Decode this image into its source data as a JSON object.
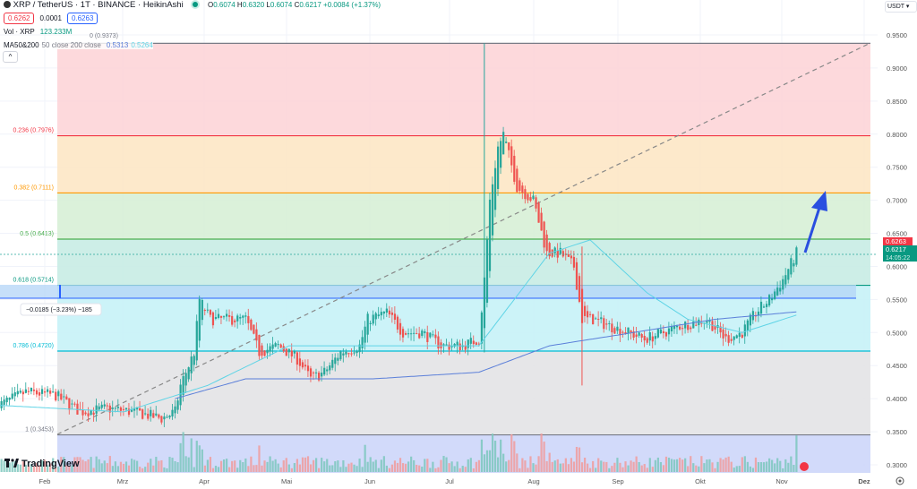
{
  "header": {
    "symbol": "XRP / TetherUS · 1T · BINANCE · HeikinAshi",
    "o_label": "O",
    "o": "0.6074",
    "h_label": "H",
    "h": "0.6320",
    "l_label": "L",
    "l": "0.6074",
    "c_label": "C",
    "c": "0.6217",
    "change": "+0.0084 (+1.37%)",
    "sell": "0.6262",
    "spread": "0.0001",
    "buy": "0.6263",
    "vol_label": "Vol · XRP",
    "vol": "123.233M",
    "ma_label": "MA50&200",
    "ma_params": "50 close 200 close",
    "ma200_value": "0.5313",
    "ma50_value": "0.5264",
    "collapse_icon": "chevron-up-icon"
  },
  "currency": "USDT",
  "price_axis": [
    "0.9500",
    "0.9000",
    "0.8500",
    "0.8000",
    "0.7500",
    "0.7000",
    "0.6500",
    "0.6000",
    "0.5500",
    "0.5000",
    "0.4500",
    "0.4000",
    "0.3500",
    "0.3000"
  ],
  "time_axis": [
    "Feb",
    "Mrz",
    "Apr",
    "Mai",
    "Jun",
    "Jul",
    "Aug",
    "Sep",
    "Okt",
    "Nov",
    "Dez"
  ],
  "last_price": {
    "ask": "0.6263",
    "price": "0.6217",
    "countdown": "14:05:22"
  },
  "fib_levels": [
    {
      "label": "0 (0.9373)",
      "level": 0.9373,
      "color": "#787b86"
    },
    {
      "label": "0.236 (0.7976)",
      "level": 0.7976,
      "color": "#f23645"
    },
    {
      "label": "0.382 (0.7111)",
      "level": 0.7111,
      "color": "#ff9800"
    },
    {
      "label": "0.5 (0.6413)",
      "level": 0.6413,
      "color": "#4caf50"
    },
    {
      "label": "0.618 (0.5714)",
      "level": 0.5714,
      "color": "#089981"
    },
    {
      "label": "0.786 (0.4720)",
      "level": 0.472,
      "color": "#00bcd4"
    },
    {
      "label": "1 (0.3453)",
      "level": 0.3453,
      "color": "#787b86"
    }
  ],
  "measure_label": "−0.0185 (−3.23%) −185",
  "logo": "TradingView",
  "colors": {
    "up": "#26a69a",
    "down": "#ef5350",
    "ma50": "#5fd4e6",
    "ma200": "#5b7fd9",
    "arrow": "#2a4fe0"
  },
  "chart_data": {
    "type": "candlestick",
    "style": "HeikinAshi",
    "ylim": [
      0.3,
      0.95
    ],
    "close_keypoints": [
      [
        "2024-01-15",
        0.39
      ],
      [
        "2024-01-25",
        0.41
      ],
      [
        "2024-02-05",
        0.405
      ],
      [
        "2024-02-14",
        0.38
      ],
      [
        "2024-02-24",
        0.385
      ],
      [
        "2024-03-05",
        0.38
      ],
      [
        "2024-03-15",
        0.37
      ],
      [
        "2024-03-20",
        0.38
      ],
      [
        "2024-03-22",
        0.42
      ],
      [
        "2024-03-27",
        0.47
      ],
      [
        "2024-03-29",
        0.55
      ],
      [
        "2024-04-02",
        0.52
      ],
      [
        "2024-04-10",
        0.52
      ],
      [
        "2024-04-15",
        0.52
      ],
      [
        "2024-04-20",
        0.47
      ],
      [
        "2024-04-27",
        0.48
      ],
      [
        "2024-05-04",
        0.46
      ],
      [
        "2024-05-09",
        0.43
      ],
      [
        "2024-05-14",
        0.44
      ],
      [
        "2024-05-20",
        0.47
      ],
      [
        "2024-05-27",
        0.48
      ],
      [
        "2024-05-30",
        0.52
      ],
      [
        "2024-06-06",
        0.53
      ],
      [
        "2024-06-12",
        0.5
      ],
      [
        "2024-06-19",
        0.5
      ],
      [
        "2024-06-26",
        0.48
      ],
      [
        "2024-07-04",
        0.48
      ],
      [
        "2024-07-10",
        0.49
      ],
      [
        "2024-07-12",
        0.58
      ],
      [
        "2024-07-14",
        0.7
      ],
      [
        "2024-07-17",
        0.78
      ],
      [
        "2024-07-19",
        0.8
      ],
      [
        "2024-07-24",
        0.72
      ],
      [
        "2024-07-30",
        0.7
      ],
      [
        "2024-08-04",
        0.62
      ],
      [
        "2024-08-09",
        0.62
      ],
      [
        "2024-08-14",
        0.6
      ],
      [
        "2024-08-17",
        0.52
      ],
      [
        "2024-08-21",
        0.52
      ],
      [
        "2024-08-27",
        0.51
      ],
      [
        "2024-09-03",
        0.5
      ],
      [
        "2024-09-09",
        0.49
      ],
      [
        "2024-09-16",
        0.5
      ],
      [
        "2024-09-22",
        0.51
      ],
      [
        "2024-10-02",
        0.52
      ],
      [
        "2024-10-09",
        0.49
      ],
      [
        "2024-10-15",
        0.5
      ],
      [
        "2024-10-20",
        0.53
      ],
      [
        "2024-10-25",
        0.55
      ],
      [
        "2024-10-30",
        0.58
      ],
      [
        "2024-11-04",
        0.62
      ]
    ],
    "ma50_keypoints": [
      [
        "2024-01-15",
        0.39
      ],
      [
        "2024-03-01",
        0.38
      ],
      [
        "2024-04-01",
        0.42
      ],
      [
        "2024-05-01",
        0.48
      ],
      [
        "2024-06-15",
        0.48
      ],
      [
        "2024-07-10",
        0.48
      ],
      [
        "2024-08-05",
        0.62
      ],
      [
        "2024-08-20",
        0.64
      ],
      [
        "2024-09-10",
        0.56
      ],
      [
        "2024-09-25",
        0.52
      ],
      [
        "2024-10-15",
        0.5
      ],
      [
        "2024-11-04",
        0.5264
      ]
    ],
    "ma200_keypoints": [
      [
        "2024-03-20",
        0.4
      ],
      [
        "2024-04-15",
        0.43
      ],
      [
        "2024-06-01",
        0.43
      ],
      [
        "2024-07-10",
        0.44
      ],
      [
        "2024-08-05",
        0.48
      ],
      [
        "2024-09-05",
        0.5
      ],
      [
        "2024-10-05",
        0.52
      ],
      [
        "2024-11-04",
        0.5313
      ]
    ]
  }
}
